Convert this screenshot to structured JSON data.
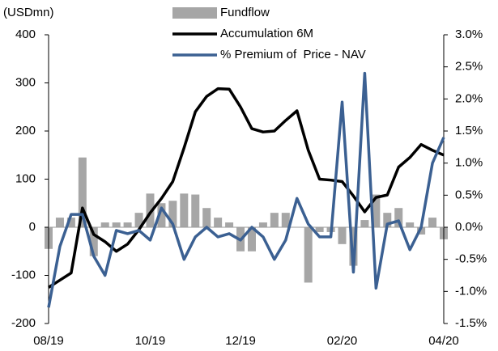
{
  "chart_data": {
    "type": "bar-line",
    "y_label": "(USDmn)",
    "categories": [
      "08/19",
      null,
      null,
      null,
      null,
      null,
      null,
      null,
      null,
      "10/19",
      null,
      null,
      null,
      null,
      null,
      null,
      null,
      "12/19",
      null,
      null,
      null,
      null,
      null,
      null,
      null,
      null,
      "02/20",
      null,
      null,
      null,
      null,
      null,
      null,
      null,
      null,
      "04/20"
    ],
    "series": [
      {
        "name": "Fundflow",
        "kind": "bar",
        "color": "#a6a6a6",
        "values": [
          -45,
          20,
          20,
          145,
          -60,
          10,
          10,
          10,
          30,
          70,
          50,
          55,
          70,
          68,
          40,
          20,
          10,
          -50,
          -50,
          10,
          30,
          30,
          0,
          -115,
          -10,
          -10,
          -35,
          -80,
          15,
          68,
          30,
          40,
          10,
          -15,
          20,
          -25
        ]
      },
      {
        "name": "Accumulation 6M",
        "kind": "line",
        "color": "#000000",
        "values": [
          -125,
          -110,
          -95,
          40,
          -15,
          -30,
          -50,
          -35,
          -5,
          30,
          60,
          95,
          165,
          240,
          272,
          288,
          287,
          250,
          205,
          198,
          200,
          222,
          242,
          160,
          100,
          98,
          95,
          65,
          32,
          62,
          67,
          125,
          145,
          172,
          160,
          150
        ]
      },
      {
        "name": "% Premium of  Price - NAV",
        "kind": "line",
        "axis": "y2",
        "color": "#3b6092",
        "values": [
          -1.25,
          -0.3,
          0.2,
          0.2,
          -0.45,
          -0.75,
          -0.05,
          -0.1,
          -0.05,
          -0.2,
          0.3,
          0.05,
          -0.5,
          -0.15,
          0.0,
          -0.15,
          -0.1,
          -0.2,
          0.0,
          -0.15,
          -0.5,
          -0.2,
          0.45,
          0.05,
          -0.15,
          -0.15,
          1.95,
          -0.7,
          2.4,
          -0.95,
          0.05,
          0.1,
          -0.35,
          0.0,
          1.0,
          1.4
        ]
      }
    ],
    "ylim": [
      -200,
      400
    ],
    "yticks": [
      -200,
      -100,
      0,
      100,
      200,
      300,
      400
    ],
    "y2lim": [
      -1.5,
      3.0
    ],
    "y2ticks": [
      {
        "value": -1.5,
        "label": "-1.5%"
      },
      {
        "value": -1.0,
        "label": "-1.0%"
      },
      {
        "value": -0.5,
        "label": "-0.5%"
      },
      {
        "value": 0.0,
        "label": "0.0%"
      },
      {
        "value": 0.5,
        "label": "0.5%"
      },
      {
        "value": 1.0,
        "label": "1.0%"
      },
      {
        "value": 1.5,
        "label": "1.5%"
      },
      {
        "value": 2.0,
        "label": "2.0%"
      },
      {
        "value": 2.5,
        "label": "2.5%"
      },
      {
        "value": 3.0,
        "label": "3.0%"
      }
    ]
  }
}
